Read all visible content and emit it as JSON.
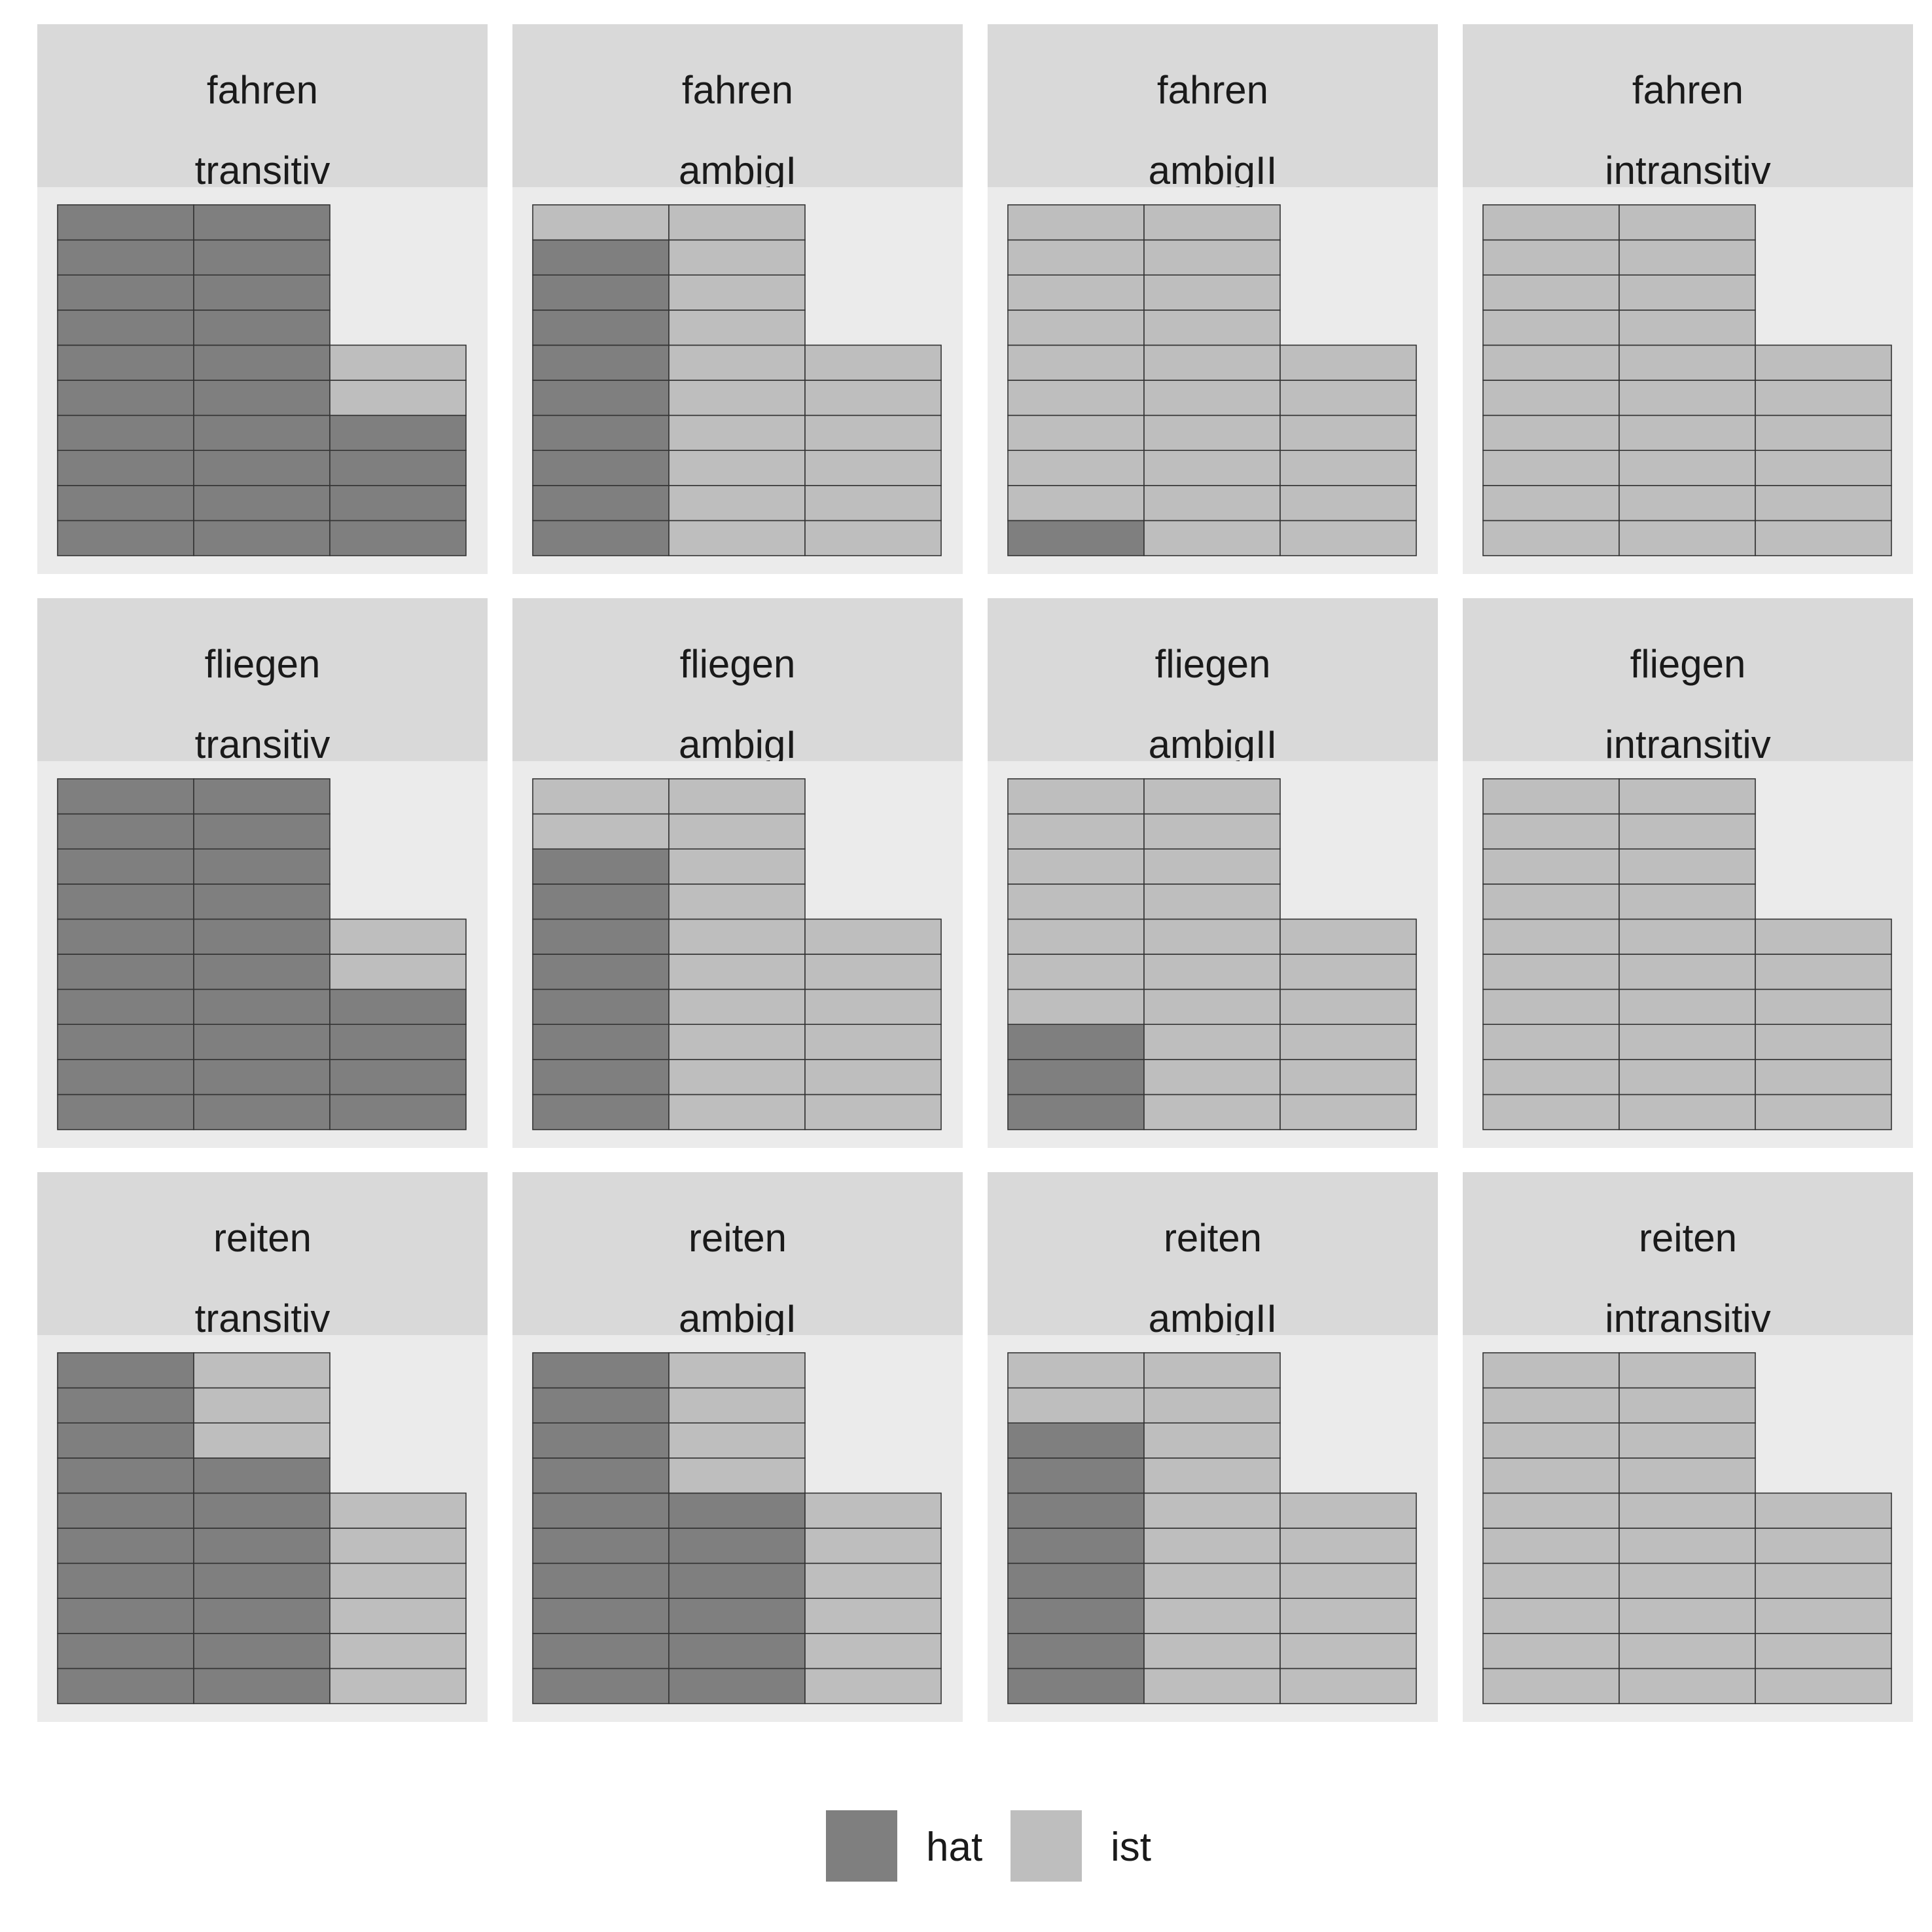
{
  "chart_data": {
    "type": "waffle",
    "colors": {
      "hat": "#7f7f7f",
      "ist": "#bebebe",
      "panel_bg": "#ebebeb",
      "strip_bg": "#d9d9d9",
      "grid_line": "#333333"
    },
    "legend": [
      {
        "key": "hat",
        "label": "hat"
      },
      {
        "key": "ist",
        "label": "ist"
      }
    ],
    "legend_position": "bottom",
    "waffle_columns": [
      10,
      10,
      6
    ],
    "panels": [
      {
        "verb": "fahren",
        "condition": "transitiv",
        "hat": 24,
        "ist": 2
      },
      {
        "verb": "fahren",
        "condition": "ambigI",
        "hat": 9,
        "ist": 17
      },
      {
        "verb": "fahren",
        "condition": "ambigII",
        "hat": 1,
        "ist": 25
      },
      {
        "verb": "fahren",
        "condition": "intransitiv",
        "hat": 0,
        "ist": 26
      },
      {
        "verb": "fliegen",
        "condition": "transitiv",
        "hat": 24,
        "ist": 2
      },
      {
        "verb": "fliegen",
        "condition": "ambigI",
        "hat": 8,
        "ist": 18
      },
      {
        "verb": "fliegen",
        "condition": "ambigII",
        "hat": 3,
        "ist": 23
      },
      {
        "verb": "fliegen",
        "condition": "intransitiv",
        "hat": 0,
        "ist": 26
      },
      {
        "verb": "reiten",
        "condition": "transitiv",
        "hat": 17,
        "ist": 9
      },
      {
        "verb": "reiten",
        "condition": "ambigI",
        "hat": 16,
        "ist": 10
      },
      {
        "verb": "reiten",
        "condition": "ambigII",
        "hat": 8,
        "ist": 18
      },
      {
        "verb": "reiten",
        "condition": "intransitiv",
        "hat": 0,
        "ist": 26
      }
    ]
  }
}
